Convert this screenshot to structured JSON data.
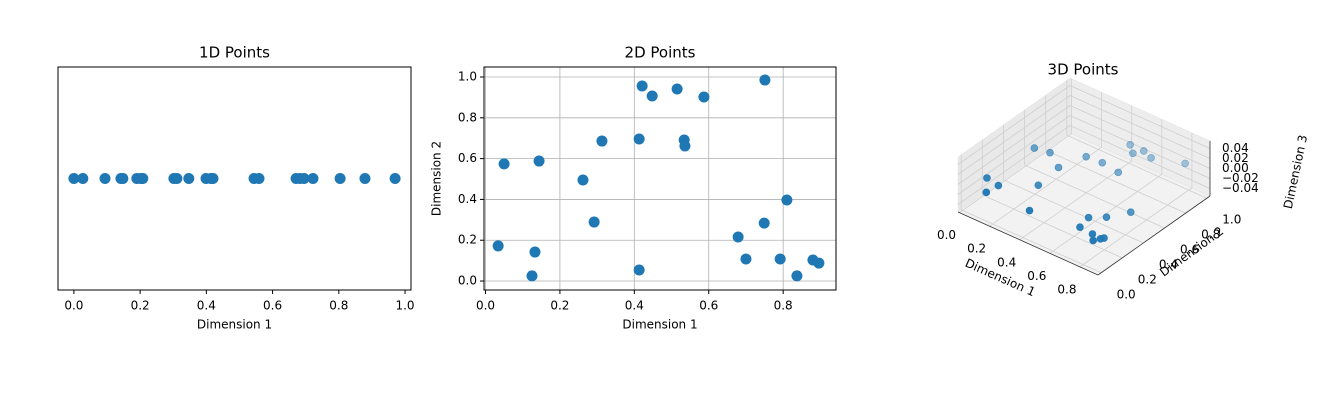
{
  "chart_data": [
    {
      "type": "strip",
      "title": "1D Points",
      "xlabel": "Dimension 1",
      "color": "#1f77b4",
      "x": [
        0.0,
        0.027,
        0.094,
        0.142,
        0.148,
        0.19,
        0.202,
        0.208,
        0.302,
        0.311,
        0.347,
        0.399,
        0.414,
        0.42,
        0.544,
        0.559,
        0.671,
        0.683,
        0.695,
        0.722,
        0.804,
        0.879,
        0.97
      ],
      "xlim": [
        -0.048,
        1.018
      ],
      "xticks": [
        {
          "value": 0,
          "label": "0.0"
        },
        0.2,
        0.4,
        0.6,
        0.8,
        {
          "value": 1,
          "label": "1.0"
        }
      ]
    },
    {
      "type": "scatter",
      "title": "2D Points",
      "xlabel": "Dimension 1",
      "ylabel": "Dimension 2",
      "color": "#1f77b4",
      "x": [
        0.034,
        0.05,
        0.144,
        0.133,
        0.125,
        0.262,
        0.292,
        0.313,
        0.413,
        0.413,
        0.421,
        0.448,
        0.515,
        0.534,
        0.536,
        0.587,
        0.751,
        0.679,
        0.749,
        0.81,
        0.7,
        0.792,
        0.837,
        0.88,
        0.896
      ],
      "y": [
        0.172,
        0.574,
        0.588,
        0.142,
        0.025,
        0.495,
        0.289,
        0.686,
        0.696,
        0.054,
        0.956,
        0.907,
        0.941,
        0.691,
        0.662,
        0.902,
        0.985,
        0.216,
        0.284,
        0.397,
        0.108,
        0.108,
        0.025,
        0.103,
        0.088
      ],
      "xlim": [
        -0.004,
        0.942
      ],
      "ylim": [
        -0.044,
        1.049
      ],
      "xticks": [
        {
          "value": 0,
          "label": "0.0"
        },
        0.2,
        0.4,
        0.6,
        0.8
      ],
      "yticks": [
        {
          "value": 0,
          "label": "0.0"
        },
        0.2,
        0.4,
        0.6,
        0.8,
        {
          "value": 1,
          "label": "1.0"
        }
      ],
      "grid": true
    },
    {
      "type": "scatter3d",
      "title": "3D Points",
      "xlabel": "Dimension 1",
      "ylabel": "Dimension 2",
      "zlabel": "Dimension 3",
      "color": "#1f77b4",
      "x": [
        0.15,
        0.07,
        0.16,
        0.43,
        0.32,
        0.09,
        0.18,
        0.3,
        0.73,
        0.71,
        0.82,
        0.86,
        0.78,
        0.89,
        0.88,
        0.85,
        0.57,
        0.35,
        0.45,
        0.46,
        0.52,
        0.55,
        0.62,
        0.79
      ],
      "y": [
        0.01,
        0.13,
        0.11,
        0.02,
        0.26,
        0.55,
        0.57,
        0.48,
        0.07,
        0.18,
        0.06,
        0.01,
        0.25,
        0.07,
        0.05,
        0.38,
        0.66,
        0.67,
        0.68,
        0.93,
        0.87,
        0.93,
        0.9,
        0.98
      ],
      "z": [
        0,
        0,
        0,
        0,
        0,
        0,
        0,
        0,
        0,
        0,
        0,
        0,
        0,
        0,
        0,
        0,
        0,
        0,
        0,
        0,
        0,
        0,
        0,
        0
      ],
      "xlim": [
        -0.01,
        0.92
      ],
      "ylim": [
        -0.03,
        1.03
      ],
      "zlim": [
        -0.055,
        0.055
      ],
      "xticks": [
        {
          "value": 0,
          "label": "0.0"
        },
        0.2,
        0.4,
        0.6,
        0.8
      ],
      "yticks": [
        {
          "value": 0,
          "label": "0.0"
        },
        0.2,
        0.4,
        0.6,
        0.8,
        {
          "value": 1,
          "label": "1.0"
        }
      ],
      "zticks": [
        {
          "value": -0.04,
          "label": "−0.04"
        },
        {
          "value": -0.02,
          "label": "−0.02"
        },
        {
          "value": 0,
          "label": "0.00"
        },
        0.02,
        0.04
      ]
    }
  ]
}
